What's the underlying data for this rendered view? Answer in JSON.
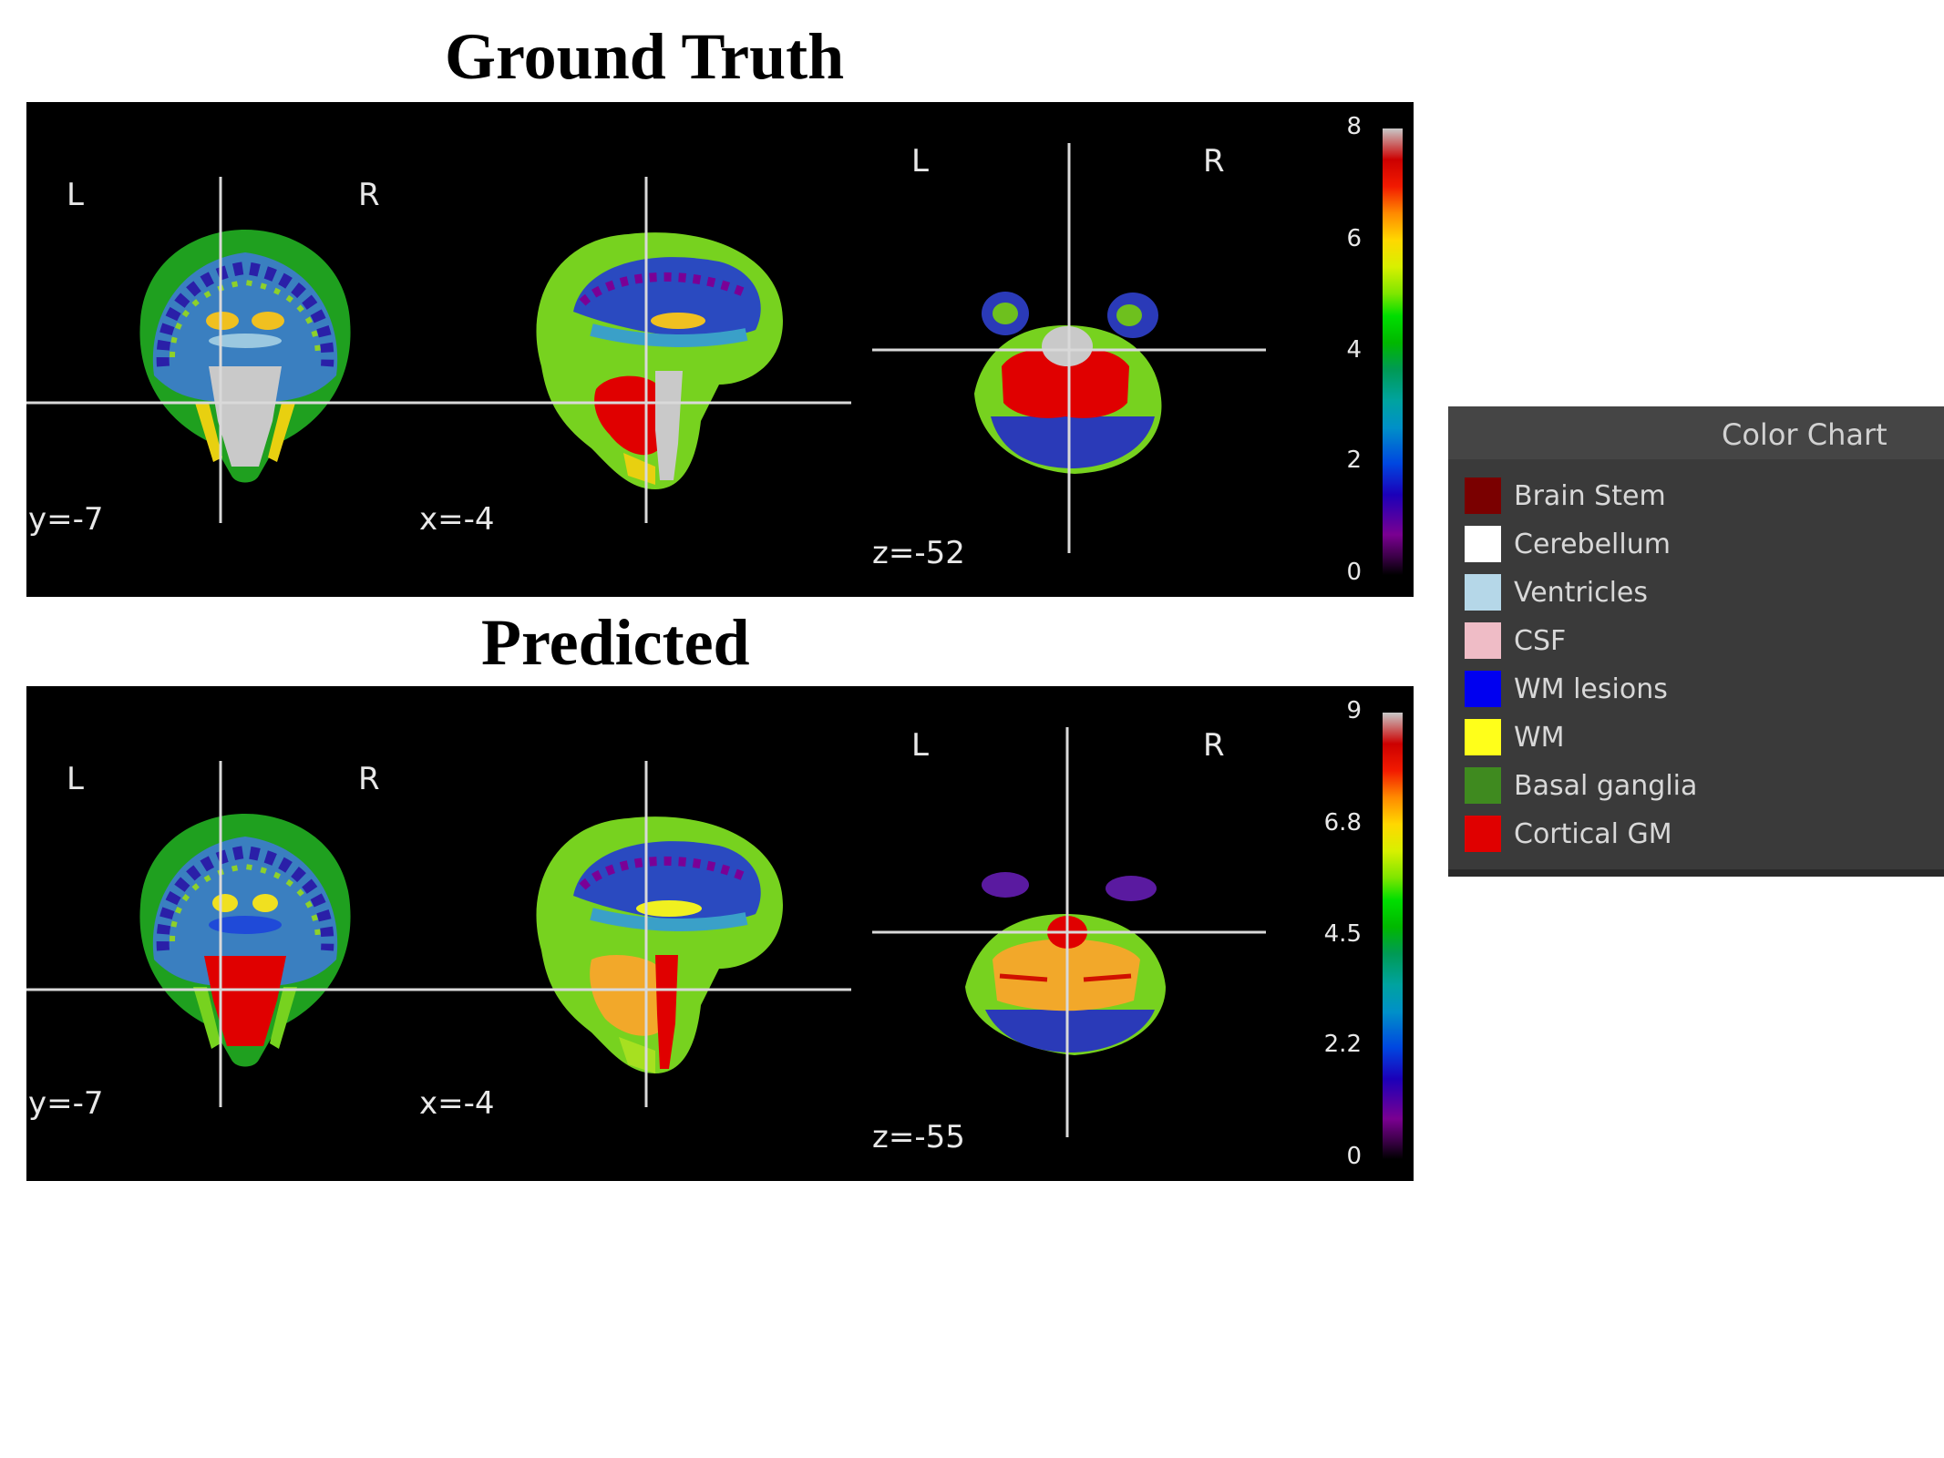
{
  "panels": [
    {
      "title": "Ground Truth",
      "views": [
        {
          "left": "L",
          "right": "R",
          "coord": "y=-7"
        },
        {
          "coord": "x=-4"
        },
        {
          "left": "L",
          "right": "R",
          "coord": "z=-52"
        }
      ],
      "colorbar_ticks": [
        "8",
        "6",
        "4",
        "2",
        "0"
      ]
    },
    {
      "title": "Predicted",
      "views": [
        {
          "left": "L",
          "right": "R",
          "coord": "y=-7"
        },
        {
          "coord": "x=-4"
        },
        {
          "left": "L",
          "right": "R",
          "coord": "z=-55"
        }
      ],
      "colorbar_ticks": [
        "9",
        "6.8",
        "4.5",
        "2.2",
        "0"
      ]
    }
  ],
  "legend": {
    "title": "Color Chart",
    "items": [
      {
        "label": "Brain Stem",
        "color": "#7a0000"
      },
      {
        "label": "Cerebellum",
        "color": "#ffffff"
      },
      {
        "label": "Ventricles",
        "color": "#b5d7e8"
      },
      {
        "label": "CSF",
        "color": "#efbcc6"
      },
      {
        "label": "WM lesions",
        "color": "#0000f0"
      },
      {
        "label": "WM",
        "color": "#ffff1a"
      },
      {
        "label": "Basal ganglia",
        "color": "#3f8a1f"
      },
      {
        "label": "Cortical GM",
        "color": "#e00000"
      }
    ]
  }
}
